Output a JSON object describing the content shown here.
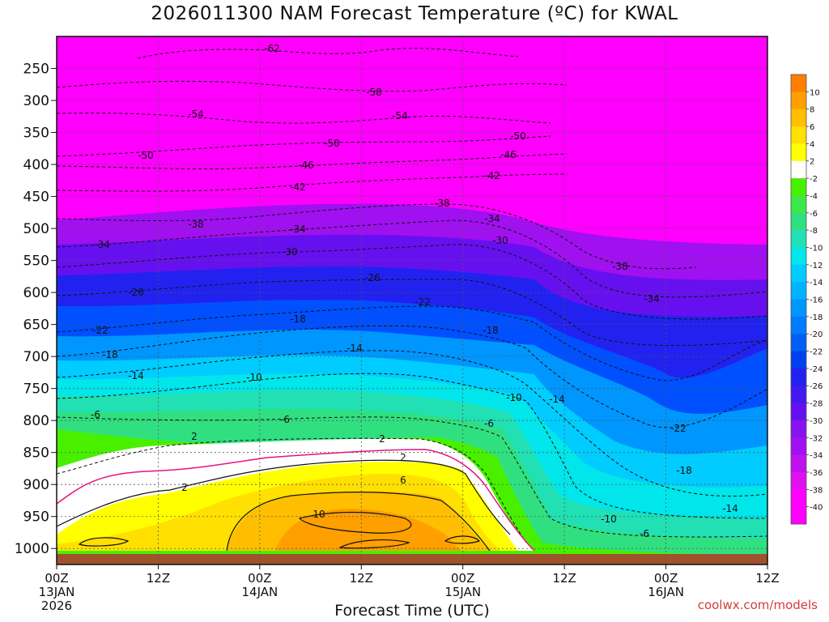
{
  "page": {
    "title": "2026011300 NAM Forecast Temperature (ºC) for KWAL",
    "credit": "coolwx.com/models"
  },
  "chart_data": {
    "type": "heatmap",
    "title": "2026011300 NAM Forecast Temperature (ºC) for KWAL",
    "xlabel": "Forecast Time (UTC)",
    "ylabel": "",
    "x_ticks": [
      {
        "hour": 0,
        "label": "00Z",
        "sub": "13JAN",
        "sub2": "2026"
      },
      {
        "hour": 12,
        "label": "12Z"
      },
      {
        "hour": 24,
        "label": "00Z",
        "sub": "14JAN"
      },
      {
        "hour": 36,
        "label": "12Z"
      },
      {
        "hour": 48,
        "label": "00Z",
        "sub": "15JAN"
      },
      {
        "hour": 60,
        "label": "12Z"
      },
      {
        "hour": 72,
        "label": "00Z",
        "sub": "16JAN"
      },
      {
        "hour": 84,
        "label": "12Z"
      }
    ],
    "xlim": [
      0,
      84
    ],
    "y_ticks": [
      250,
      300,
      350,
      400,
      450,
      500,
      550,
      600,
      650,
      700,
      750,
      800,
      850,
      900,
      950,
      1000
    ],
    "ylim": [
      200,
      1025
    ],
    "y_unit": "hPa",
    "colorbar": {
      "levels": [
        10,
        8,
        6,
        4,
        2,
        -2,
        -4,
        -6,
        -8,
        -10,
        -12,
        -14,
        -16,
        -18,
        -20,
        -22,
        -24,
        -26,
        -28,
        -30,
        -32,
        -34,
        -36,
        -38,
        -40
      ],
      "colors": [
        "#ff7f00",
        "#ff9f00",
        "#ffbf00",
        "#ffe000",
        "#ffff00",
        "#ffffff",
        "#48f000",
        "#3ce848",
        "#30e080",
        "#20e0b4",
        "#00e6ea",
        "#00ccff",
        "#00b2ff",
        "#0096ff",
        "#007aff",
        "#005ef7",
        "#0040ee",
        "#2222f0",
        "#4419f0",
        "#6610f0",
        "#8812f0",
        "#a010f0",
        "#c010f0",
        "#e010f0",
        "#ff00ff",
        "#ff00ff"
      ]
    },
    "isotherms": [
      {
        "label": "-62",
        "hour": 21
      },
      {
        "label": "-58",
        "hour": 32
      },
      {
        "label": "-54",
        "hour": 14
      },
      {
        "label": "-54",
        "hour": 35
      },
      {
        "label": "-50",
        "hour": 9
      },
      {
        "label": "-50",
        "hour": 28
      },
      {
        "label": "-50",
        "hour": 53
      },
      {
        "label": "-46",
        "hour": 26
      },
      {
        "label": "-46",
        "hour": 53
      },
      {
        "label": "-42",
        "hour": 25
      },
      {
        "label": "-42",
        "hour": 51
      },
      {
        "label": "-38",
        "hour": 14
      },
      {
        "label": "-38",
        "hour": 41
      },
      {
        "label": "-38",
        "hour": 64
      },
      {
        "label": "-34",
        "hour": 5
      },
      {
        "label": "-34",
        "hour": 25
      },
      {
        "label": "-34",
        "hour": 50
      },
      {
        "label": "-34",
        "hour": 71
      },
      {
        "label": "-30",
        "hour": 24
      },
      {
        "label": "-30",
        "hour": 52
      },
      {
        "label": "-26",
        "hour": 9
      },
      {
        "label": "-26",
        "hour": 35
      },
      {
        "label": "-22",
        "hour": 5
      },
      {
        "label": "-22",
        "hour": 44
      },
      {
        "label": "-22",
        "hour": 73
      },
      {
        "label": "-18",
        "hour": 6
      },
      {
        "label": "-18",
        "hour": 25
      },
      {
        "label": "-18",
        "hour": 51
      },
      {
        "label": "-18",
        "hour": 74
      },
      {
        "label": "-14",
        "hour": 9
      },
      {
        "label": "-14",
        "hour": 34
      },
      {
        "label": "-14",
        "hour": 59
      },
      {
        "label": "-14",
        "hour": 79
      },
      {
        "label": "-10",
        "hour": 23
      },
      {
        "label": "-10",
        "hour": 55
      },
      {
        "label": "-10",
        "hour": 66
      },
      {
        "label": "-6",
        "hour": 4
      },
      {
        "label": "-6",
        "hour": 27
      },
      {
        "label": "-6",
        "hour": 51
      },
      {
        "label": "-6",
        "hour": 70
      },
      {
        "label": "2",
        "hour": 16
      },
      {
        "label": "2",
        "hour": 38
      },
      {
        "label": "2",
        "hour": 41
      },
      {
        "label": "2",
        "hour": 15
      },
      {
        "label": "6",
        "hour": 41
      },
      {
        "label": "10",
        "hour": 31
      }
    ]
  }
}
